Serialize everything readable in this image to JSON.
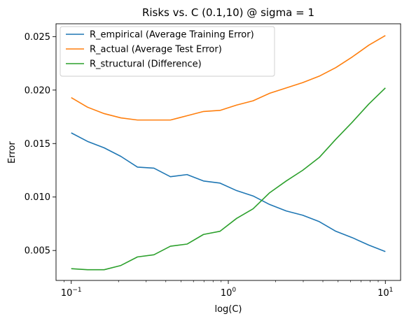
{
  "chart_data": {
    "type": "line",
    "title": "Risks vs. C (0.1,10) @ sigma = 1",
    "xlabel": "log(C)",
    "ylabel": "Error",
    "xscale": "log",
    "xlim": [
      0.08,
      12.5
    ],
    "ylim": [
      0.0022,
      0.0262
    ],
    "grid": false,
    "legend": "top-left",
    "x_ticks": [
      {
        "value": 0.1,
        "base": "10",
        "exp": "−1"
      },
      {
        "value": 1,
        "base": "10",
        "exp": "0"
      },
      {
        "value": 10,
        "base": "10",
        "exp": "1"
      }
    ],
    "y_ticks": [
      {
        "value": 0.005,
        "label": "0.005"
      },
      {
        "value": 0.01,
        "label": "0.010"
      },
      {
        "value": 0.015,
        "label": "0.015"
      },
      {
        "value": 0.02,
        "label": "0.020"
      },
      {
        "value": 0.025,
        "label": "0.025"
      }
    ],
    "x": [
      0.1,
      0.127,
      0.162,
      0.207,
      0.264,
      0.336,
      0.428,
      0.546,
      0.695,
      0.886,
      1.129,
      1.438,
      1.833,
      2.336,
      2.976,
      3.793,
      4.833,
      6.158,
      7.848,
      10.0
    ],
    "series": [
      {
        "name": "R_empirical (Average Training Error)",
        "color": "#1f77b4",
        "values": [
          0.016,
          0.0152,
          0.0146,
          0.0138,
          0.0128,
          0.0127,
          0.0119,
          0.0121,
          0.0115,
          0.0113,
          0.0106,
          0.0101,
          0.0093,
          0.0087,
          0.0083,
          0.0077,
          0.0068,
          0.0062,
          0.0055,
          0.0049
        ]
      },
      {
        "name": "R_actual (Average Test Error)",
        "color": "#ff7f0e",
        "values": [
          0.0193,
          0.0184,
          0.0178,
          0.0174,
          0.0172,
          0.0172,
          0.0172,
          0.0176,
          0.018,
          0.0181,
          0.0186,
          0.019,
          0.0197,
          0.0202,
          0.0207,
          0.0213,
          0.0221,
          0.0231,
          0.0242,
          0.0251
        ]
      },
      {
        "name": "R_structural (Difference)",
        "color": "#2ca02c",
        "values": [
          0.0033,
          0.0032,
          0.0032,
          0.0036,
          0.0044,
          0.0046,
          0.0054,
          0.0056,
          0.0065,
          0.0068,
          0.008,
          0.0089,
          0.0104,
          0.0115,
          0.0125,
          0.0137,
          0.0154,
          0.017,
          0.0187,
          0.0202
        ]
      }
    ]
  }
}
